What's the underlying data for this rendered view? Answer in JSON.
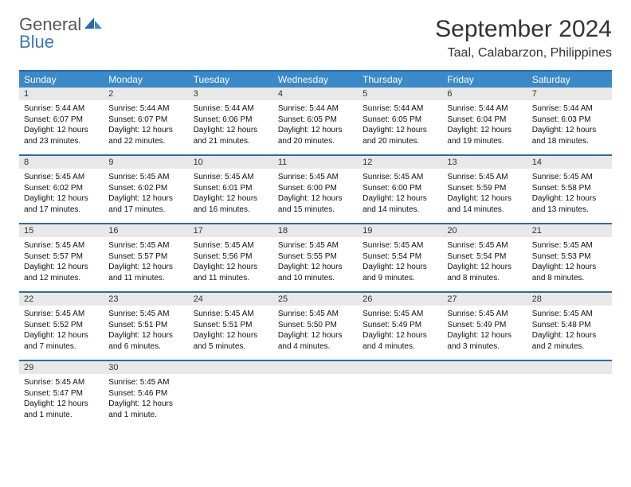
{
  "brand": {
    "name_part1": "General",
    "name_part2": "Blue"
  },
  "title": "September 2024",
  "location": "Taal, Calabarzon, Philippines",
  "colors": {
    "header_bg": "#3a89c9",
    "header_border": "#2a6aa6",
    "daynum_bg": "#e8e8e8",
    "text": "#111111",
    "brand_gray": "#555555",
    "brand_blue": "#3a7ab8"
  },
  "day_headers": [
    "Sunday",
    "Monday",
    "Tuesday",
    "Wednesday",
    "Thursday",
    "Friday",
    "Saturday"
  ],
  "weeks": [
    [
      {
        "num": "1",
        "sunrise": "5:44 AM",
        "sunset": "6:07 PM",
        "daylight": "12 hours and 23 minutes."
      },
      {
        "num": "2",
        "sunrise": "5:44 AM",
        "sunset": "6:07 PM",
        "daylight": "12 hours and 22 minutes."
      },
      {
        "num": "3",
        "sunrise": "5:44 AM",
        "sunset": "6:06 PM",
        "daylight": "12 hours and 21 minutes."
      },
      {
        "num": "4",
        "sunrise": "5:44 AM",
        "sunset": "6:05 PM",
        "daylight": "12 hours and 20 minutes."
      },
      {
        "num": "5",
        "sunrise": "5:44 AM",
        "sunset": "6:05 PM",
        "daylight": "12 hours and 20 minutes."
      },
      {
        "num": "6",
        "sunrise": "5:44 AM",
        "sunset": "6:04 PM",
        "daylight": "12 hours and 19 minutes."
      },
      {
        "num": "7",
        "sunrise": "5:44 AM",
        "sunset": "6:03 PM",
        "daylight": "12 hours and 18 minutes."
      }
    ],
    [
      {
        "num": "8",
        "sunrise": "5:45 AM",
        "sunset": "6:02 PM",
        "daylight": "12 hours and 17 minutes."
      },
      {
        "num": "9",
        "sunrise": "5:45 AM",
        "sunset": "6:02 PM",
        "daylight": "12 hours and 17 minutes."
      },
      {
        "num": "10",
        "sunrise": "5:45 AM",
        "sunset": "6:01 PM",
        "daylight": "12 hours and 16 minutes."
      },
      {
        "num": "11",
        "sunrise": "5:45 AM",
        "sunset": "6:00 PM",
        "daylight": "12 hours and 15 minutes."
      },
      {
        "num": "12",
        "sunrise": "5:45 AM",
        "sunset": "6:00 PM",
        "daylight": "12 hours and 14 minutes."
      },
      {
        "num": "13",
        "sunrise": "5:45 AM",
        "sunset": "5:59 PM",
        "daylight": "12 hours and 14 minutes."
      },
      {
        "num": "14",
        "sunrise": "5:45 AM",
        "sunset": "5:58 PM",
        "daylight": "12 hours and 13 minutes."
      }
    ],
    [
      {
        "num": "15",
        "sunrise": "5:45 AM",
        "sunset": "5:57 PM",
        "daylight": "12 hours and 12 minutes."
      },
      {
        "num": "16",
        "sunrise": "5:45 AM",
        "sunset": "5:57 PM",
        "daylight": "12 hours and 11 minutes."
      },
      {
        "num": "17",
        "sunrise": "5:45 AM",
        "sunset": "5:56 PM",
        "daylight": "12 hours and 11 minutes."
      },
      {
        "num": "18",
        "sunrise": "5:45 AM",
        "sunset": "5:55 PM",
        "daylight": "12 hours and 10 minutes."
      },
      {
        "num": "19",
        "sunrise": "5:45 AM",
        "sunset": "5:54 PM",
        "daylight": "12 hours and 9 minutes."
      },
      {
        "num": "20",
        "sunrise": "5:45 AM",
        "sunset": "5:54 PM",
        "daylight": "12 hours and 8 minutes."
      },
      {
        "num": "21",
        "sunrise": "5:45 AM",
        "sunset": "5:53 PM",
        "daylight": "12 hours and 8 minutes."
      }
    ],
    [
      {
        "num": "22",
        "sunrise": "5:45 AM",
        "sunset": "5:52 PM",
        "daylight": "12 hours and 7 minutes."
      },
      {
        "num": "23",
        "sunrise": "5:45 AM",
        "sunset": "5:51 PM",
        "daylight": "12 hours and 6 minutes."
      },
      {
        "num": "24",
        "sunrise": "5:45 AM",
        "sunset": "5:51 PM",
        "daylight": "12 hours and 5 minutes."
      },
      {
        "num": "25",
        "sunrise": "5:45 AM",
        "sunset": "5:50 PM",
        "daylight": "12 hours and 4 minutes."
      },
      {
        "num": "26",
        "sunrise": "5:45 AM",
        "sunset": "5:49 PM",
        "daylight": "12 hours and 4 minutes."
      },
      {
        "num": "27",
        "sunrise": "5:45 AM",
        "sunset": "5:49 PM",
        "daylight": "12 hours and 3 minutes."
      },
      {
        "num": "28",
        "sunrise": "5:45 AM",
        "sunset": "5:48 PM",
        "daylight": "12 hours and 2 minutes."
      }
    ],
    [
      {
        "num": "29",
        "sunrise": "5:45 AM",
        "sunset": "5:47 PM",
        "daylight": "12 hours and 1 minute."
      },
      {
        "num": "30",
        "sunrise": "5:45 AM",
        "sunset": "5:46 PM",
        "daylight": "12 hours and 1 minute."
      },
      null,
      null,
      null,
      null,
      null
    ]
  ],
  "labels": {
    "sunrise": "Sunrise:",
    "sunset": "Sunset:",
    "daylight": "Daylight:"
  }
}
